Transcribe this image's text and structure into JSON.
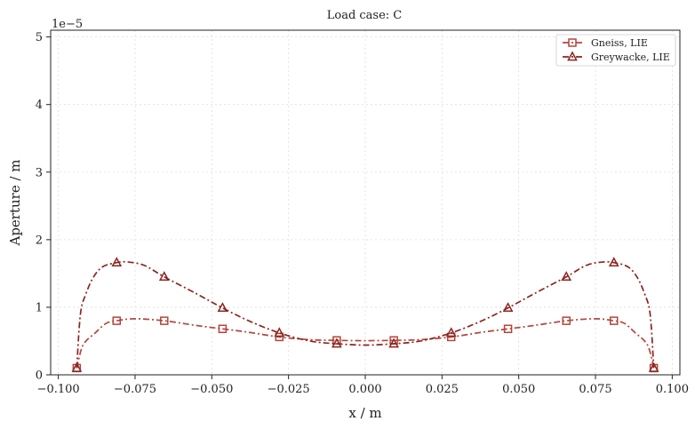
{
  "chart_data": {
    "type": "line",
    "title": "Load case: C",
    "xlabel": "x / m",
    "ylabel": "Aperture / m",
    "offset_text": "1e−5",
    "xlim": [
      -0.1025,
      0.1025
    ],
    "ylim": [
      0,
      5.1e-05
    ],
    "xticks": [
      -0.1,
      -0.075,
      -0.05,
      -0.025,
      0.0,
      0.025,
      0.05,
      0.075,
      0.1
    ],
    "xtick_labels": [
      "−0.100",
      "−0.075",
      "−0.050",
      "−0.025",
      "0.000",
      "0.025",
      "0.050",
      "0.075",
      "0.100"
    ],
    "yticks": [
      0,
      1e-05,
      2e-05,
      3e-05,
      4e-05,
      5e-05
    ],
    "ytick_labels": [
      "0",
      "1",
      "2",
      "3",
      "4",
      "5"
    ],
    "grid": true,
    "legend_position": "top-right",
    "series": [
      {
        "name": "Gneiss, LIE",
        "color": "#b5453b",
        "marker": "square",
        "x": [
          -0.094,
          -0.0925,
          -0.091,
          -0.088,
          -0.0845,
          -0.081,
          -0.075,
          -0.0655,
          -0.055,
          -0.0465,
          -0.038,
          -0.028,
          -0.018,
          -0.0093,
          0.0,
          0.0093,
          0.018,
          0.028,
          0.038,
          0.0465,
          0.055,
          0.0655,
          0.075,
          0.081,
          0.0845,
          0.088,
          0.091,
          0.0925,
          0.094
        ],
        "y": [
          1e-06,
          3.8e-06,
          5e-06,
          6.2e-06,
          7.6e-06,
          8e-06,
          8.3e-06,
          8e-06,
          7.3e-06,
          6.8e-06,
          6.3e-06,
          5.6e-06,
          5.2e-06,
          5.1e-06,
          5.05e-06,
          5.1e-06,
          5.2e-06,
          5.6e-06,
          6.3e-06,
          6.8e-06,
          7.3e-06,
          8e-06,
          8.3e-06,
          8e-06,
          7.6e-06,
          6.2e-06,
          5e-06,
          3.8e-06,
          1e-06
        ],
        "marker_x": [
          -0.094,
          -0.081,
          -0.0655,
          -0.0465,
          -0.028,
          -0.0093,
          0.0093,
          0.028,
          0.0465,
          0.0655,
          0.081,
          0.094
        ],
        "marker_y": [
          1e-06,
          8e-06,
          8e-06,
          6.8e-06,
          5.6e-06,
          5.1e-06,
          5.1e-06,
          5.6e-06,
          6.8e-06,
          8e-06,
          8e-06,
          1e-06
        ]
      },
      {
        "name": "Greywacke, LIE",
        "color": "#8b2520",
        "marker": "triangle",
        "x": [
          -0.094,
          -0.0928,
          -0.091,
          -0.0885,
          -0.0855,
          -0.081,
          -0.0775,
          -0.072,
          -0.0655,
          -0.055,
          -0.0465,
          -0.038,
          -0.028,
          -0.018,
          -0.0093,
          0.0,
          0.0093,
          0.018,
          0.028,
          0.038,
          0.0465,
          0.055,
          0.0655,
          0.072,
          0.0775,
          0.081,
          0.0855,
          0.0885,
          0.091,
          0.0928,
          0.094
        ],
        "y": [
          1e-06,
          9e-06,
          1.2e-05,
          1.45e-05,
          1.6e-05,
          1.66e-05,
          1.67e-05,
          1.62e-05,
          1.45e-05,
          1.2e-05,
          9.9e-06,
          8e-06,
          6.2e-06,
          5e-06,
          4.6e-06,
          4.4e-06,
          4.6e-06,
          5e-06,
          6.2e-06,
          8e-06,
          9.9e-06,
          1.2e-05,
          1.45e-05,
          1.62e-05,
          1.67e-05,
          1.66e-05,
          1.6e-05,
          1.45e-05,
          1.2e-05,
          9e-06,
          1e-06
        ],
        "marker_x": [
          -0.094,
          -0.081,
          -0.0655,
          -0.0465,
          -0.028,
          -0.0093,
          0.0093,
          0.028,
          0.0465,
          0.0655,
          0.081,
          0.094
        ],
        "marker_y": [
          1e-06,
          1.66e-05,
          1.45e-05,
          9.9e-06,
          6.2e-06,
          4.6e-06,
          4.6e-06,
          6.2e-06,
          9.9e-06,
          1.45e-05,
          1.66e-05,
          1e-06
        ]
      }
    ]
  }
}
